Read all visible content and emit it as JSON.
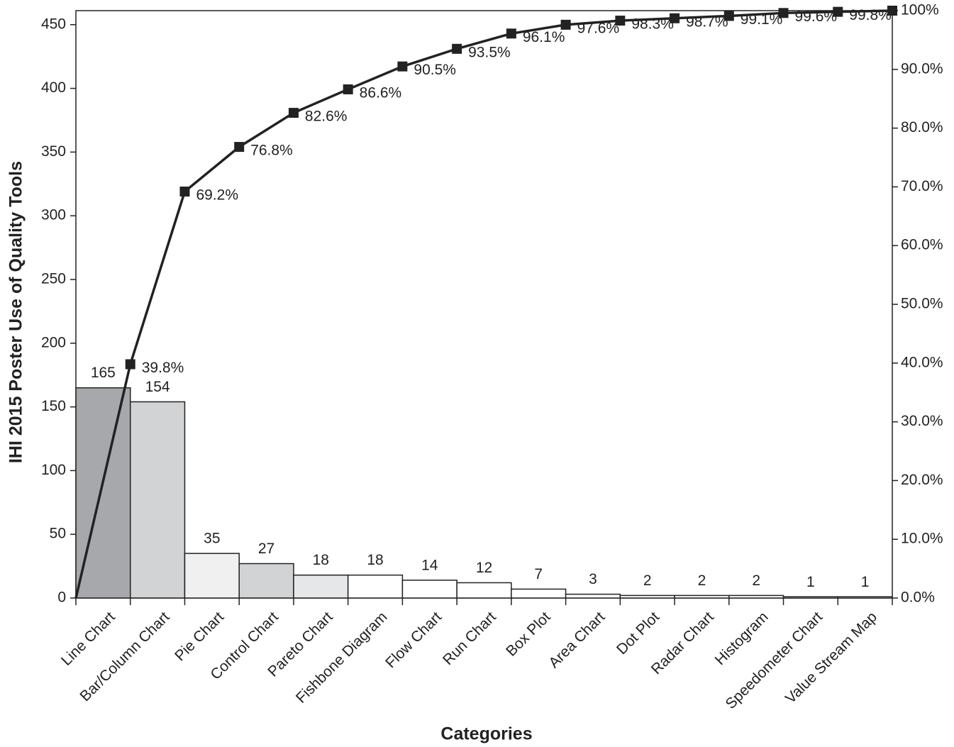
{
  "chart_data": {
    "type": "pareto",
    "x_label": "Categories",
    "y_label": "IHI 2015 Poster Use of Quality Tools",
    "categories": [
      "Line Chart",
      "Bar/Column Chart",
      "Pie Chart",
      "Control Chart",
      "Pareto Chart",
      "Fishbone Diagram",
      "Flow Chart",
      "Run Chart",
      "Box Plot",
      "Area Chart",
      "Dot Plot",
      "Radar Chart",
      "Histogram",
      "Speedometer Chart",
      "Value Stream Map"
    ],
    "values": [
      165,
      154,
      35,
      27,
      18,
      18,
      14,
      12,
      7,
      3,
      2,
      2,
      2,
      1,
      1
    ],
    "colors": [
      "#a7a8ab",
      "#d2d3d5",
      "#f0f0f1",
      "#d2d3d5",
      "#e6e7e8",
      "#ffffff",
      "#ffffff",
      "#ffffff",
      "#ffffff",
      "#ffffff",
      "#ffffff",
      "#ffffff",
      "#ffffff",
      "#ffffff",
      "#ffffff"
    ],
    "cumulative": {
      "axis": "y2",
      "color": "#222222",
      "values": [
        0,
        39.8,
        69.2,
        76.8,
        82.6,
        86.6,
        90.5,
        93.5,
        96.1,
        97.6,
        98.3,
        98.7,
        99.1,
        99.6,
        99.8,
        100
      ],
      "value_labels": [
        null,
        "39.8%",
        "69.2%",
        "76.8%",
        "82.6%",
        "86.6%",
        "90.5%",
        "93.5%",
        "96.1%",
        "97.6%",
        "98.3%",
        "98.7%",
        "99.1%",
        "99.6%",
        "99.8%",
        null
      ]
    },
    "ylim": [
      0,
      461
    ],
    "yticks": [
      0,
      50,
      100,
      150,
      200,
      250,
      300,
      350,
      400,
      450
    ],
    "y2lim": [
      0,
      100
    ],
    "y2ticks": [
      {
        "value": 0,
        "label": "0.0%"
      },
      {
        "value": 10,
        "label": "10.0%"
      },
      {
        "value": 20,
        "label": "20.0%"
      },
      {
        "value": 30,
        "label": "30.0%"
      },
      {
        "value": 40,
        "label": "40.0%"
      },
      {
        "value": 50,
        "label": "50.0%"
      },
      {
        "value": 60,
        "label": "60.0%"
      },
      {
        "value": 70,
        "label": "70.0%"
      },
      {
        "value": 80,
        "label": "80.0%"
      },
      {
        "value": 90,
        "label": "90.0%"
      },
      {
        "value": 100,
        "label": "100%"
      }
    ]
  }
}
